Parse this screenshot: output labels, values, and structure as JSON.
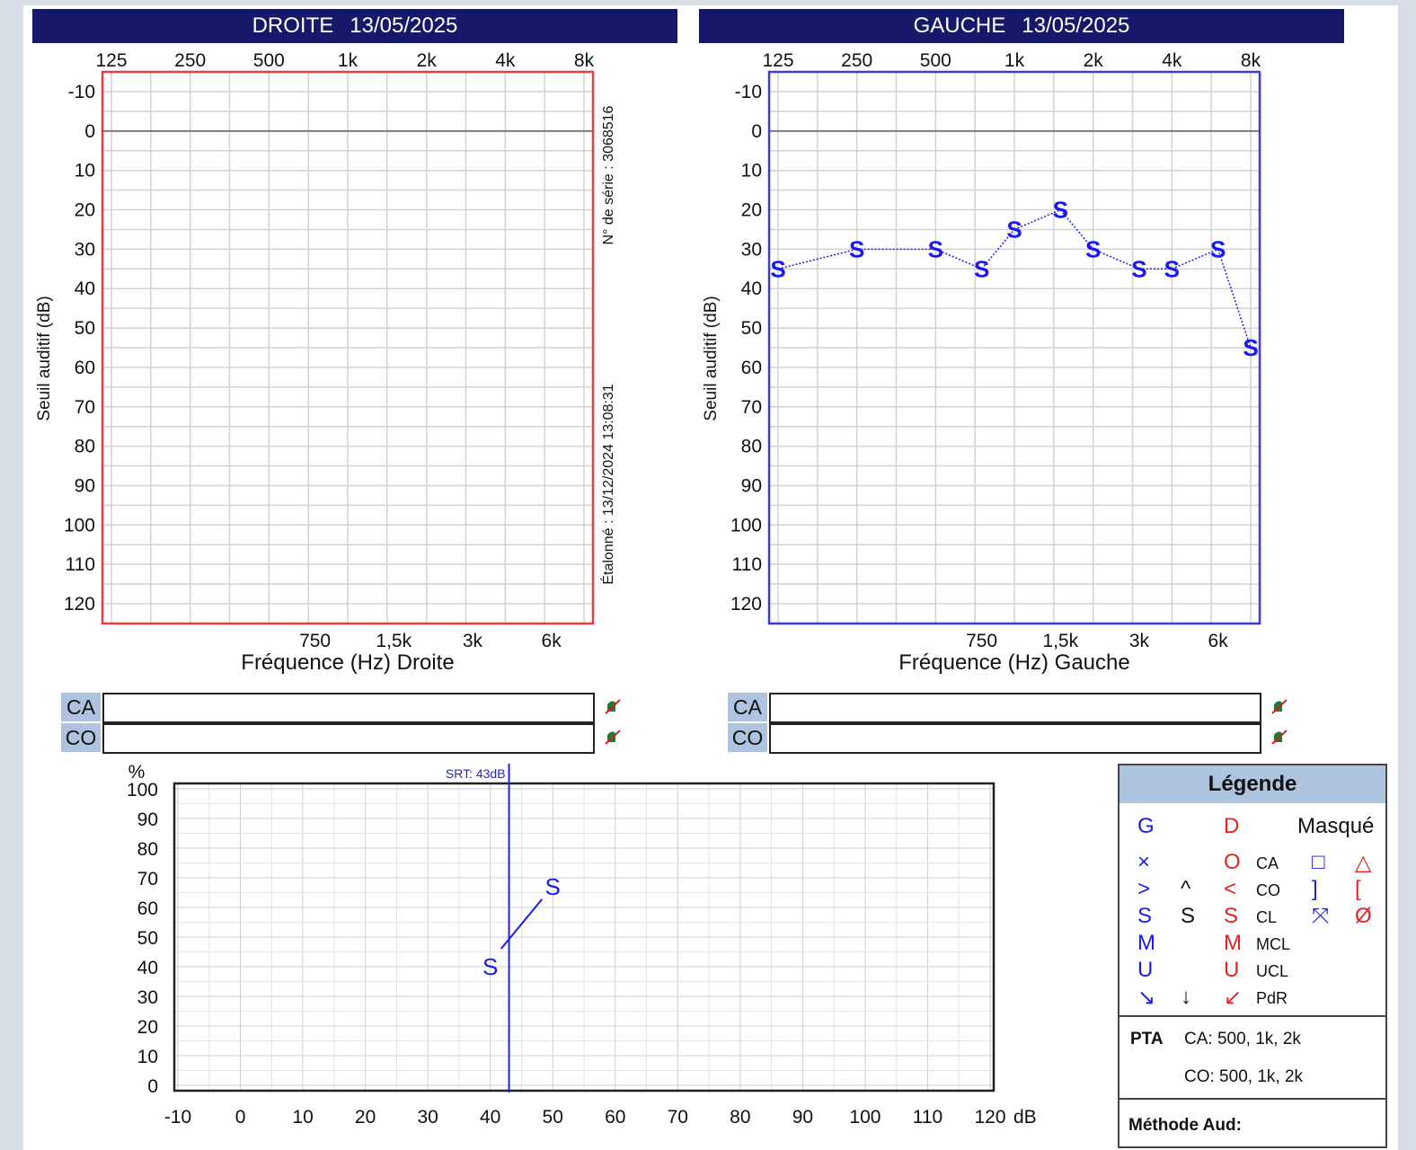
{
  "right_panel": {
    "ear": "DROITE",
    "date": "13/05/2025",
    "xlabel": "Fréquence (Hz) Droite",
    "serial": "N° de série : 3068516",
    "calibrated": "Étalonné : 13/12/2024 13:08:31",
    "frame_color": "#ee3b3b"
  },
  "left_panel": {
    "ear": "GAUCHE",
    "date": "13/05/2025",
    "xlabel": "Fréquence (Hz) Gauche",
    "frame_color": "#3b3bee"
  },
  "ylabel": "Seuil auditif (dB)",
  "freq_top_ticks": [
    "125",
    "250",
    "500",
    "1k",
    "2k",
    "4k",
    "8k"
  ],
  "freq_bottom_ticks": [
    "750",
    "1,5k",
    "3k",
    "6k"
  ],
  "db_ticks": [
    "-10",
    "0",
    "10",
    "20",
    "30",
    "40",
    "50",
    "60",
    "70",
    "80",
    "90",
    "100",
    "110",
    "120"
  ],
  "caco": {
    "ca": "CA",
    "co": "CO"
  },
  "chart_data": [
    {
      "type": "line",
      "panel": "right",
      "x_scale": "log2",
      "xlim": [
        125,
        8000
      ],
      "ylim": [
        -10,
        120
      ],
      "y_inverted": true,
      "series": []
    },
    {
      "type": "line",
      "panel": "left",
      "x_scale": "log2",
      "xlim": [
        125,
        8000
      ],
      "ylim": [
        -10,
        120
      ],
      "y_inverted": true,
      "series": [
        {
          "symbol": "S",
          "color": "#1a1aee",
          "line": "dotted",
          "x": [
            125,
            250,
            500,
            750,
            1000,
            1500,
            2000,
            3000,
            4000,
            6000,
            8000
          ],
          "y": [
            35,
            30,
            30,
            35,
            25,
            20,
            30,
            35,
            35,
            30,
            55
          ]
        }
      ]
    },
    {
      "type": "line",
      "panel": "speech",
      "xlim": [
        -10,
        120
      ],
      "ylim": [
        0,
        100
      ],
      "x_ticks": [
        "-10",
        "0",
        "10",
        "20",
        "30",
        "40",
        "50",
        "60",
        "70",
        "80",
        "90",
        "100",
        "110",
        "120"
      ],
      "x_unit": "dB",
      "y_ticks": [
        "100",
        "90",
        "80",
        "70",
        "60",
        "50",
        "40",
        "30",
        "20",
        "10",
        "0"
      ],
      "y_unit": "%",
      "srt": {
        "label": "SRT: 43dB",
        "value": 43,
        "color": "#2222dd"
      },
      "series": [
        {
          "symbol": "S",
          "color": "#1a1aee",
          "x": [
            40,
            50
          ],
          "y": [
            40,
            67
          ]
        }
      ]
    }
  ],
  "legend": {
    "title": "Légende",
    "g": "G",
    "d": "D",
    "masked": "Masqué",
    "rows": [
      {
        "label": "CA",
        "g": "×",
        "d": "O",
        "mg": "□",
        "md": "△"
      },
      {
        "label": "CO",
        "g": ">",
        "b": "^",
        "d": "<",
        "mg": "]",
        "md": "["
      },
      {
        "label": "CL",
        "g": "S",
        "b": "S",
        "d": "S",
        "mg": "⤧",
        "md": "Ø"
      },
      {
        "label": "MCL",
        "g": "M",
        "d": "M"
      },
      {
        "label": "UCL",
        "g": "U",
        "d": "U"
      },
      {
        "label": "PdR",
        "g": "↘",
        "b": "↓",
        "d": "↙"
      }
    ],
    "pta_label": "PTA",
    "pta_ca": "CA: 500, 1k, 2k",
    "pta_co": "CO: 500, 1k, 2k",
    "method_label": "Méthode Aud:",
    "color_left": "#1a1aee",
    "color_right": "#e82020"
  }
}
